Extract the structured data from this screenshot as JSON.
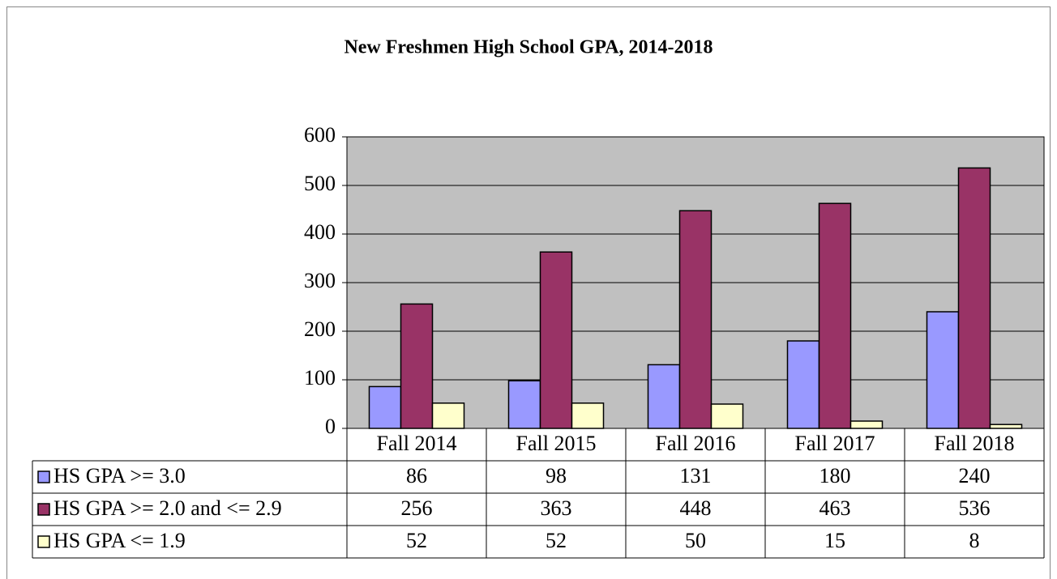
{
  "chart_data": {
    "type": "bar",
    "title": "New Freshmen High School GPA, 2014-2018",
    "categories": [
      "Fall 2014",
      "Fall 2015",
      "Fall 2016",
      "Fall 2017",
      "Fall 2018"
    ],
    "series": [
      {
        "name": "HS GPA >= 3.0",
        "color": "#9999ff",
        "values": [
          86,
          98,
          131,
          180,
          240
        ]
      },
      {
        "name": "HS GPA >= 2.0 and <= 2.9",
        "color": "#993366",
        "values": [
          256,
          363,
          448,
          463,
          536
        ]
      },
      {
        "name": "HS GPA <= 1.9",
        "color": "#ffffcc",
        "values": [
          52,
          52,
          50,
          15,
          8
        ]
      }
    ],
    "ylim": [
      0,
      600
    ],
    "yticks": [
      0,
      100,
      200,
      300,
      400,
      500,
      600
    ],
    "grid": true,
    "plot_background": "#c0c0c0",
    "data_table": true
  }
}
